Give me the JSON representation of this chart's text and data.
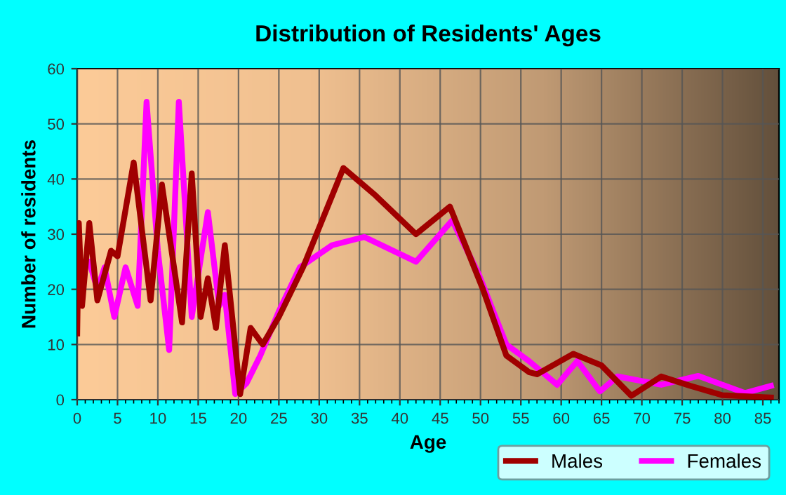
{
  "chart_data": {
    "type": "line",
    "title": "Distribution of Residents' Ages",
    "xlabel": "Age",
    "ylabel": "Number of residents",
    "xlim": [
      0,
      87
    ],
    "xticks": [
      0,
      5,
      10,
      15,
      20,
      25,
      30,
      35,
      40,
      45,
      50,
      55,
      60,
      65,
      70,
      75,
      80,
      85
    ],
    "ylim": [
      0,
      60
    ],
    "yticks": [
      0,
      10,
      20,
      30,
      40,
      50,
      60
    ],
    "grid": true,
    "legend": "bottom right",
    "marker": "none",
    "line_style": "solid",
    "series": [
      {
        "name": "Males",
        "color": "#a00000",
        "x": [
          0,
          0.2,
          0.6,
          1.5,
          2.5,
          4.2,
          5,
          7,
          9.1,
          10.5,
          13,
          14.2,
          15.3,
          16.2,
          17.2,
          18.3,
          20.2,
          21.5,
          23,
          25,
          28,
          33,
          37,
          42,
          46.2,
          50.3,
          53.2,
          56,
          57,
          61.5,
          65,
          68.7,
          72.4,
          76,
          80,
          86
        ],
        "values": [
          12,
          32,
          17,
          32,
          18,
          27,
          26,
          43,
          18,
          39,
          14,
          41,
          15,
          22,
          13,
          28,
          1,
          13,
          10,
          15,
          24,
          42,
          37,
          30,
          35,
          20,
          8,
          5,
          4.6,
          8.3,
          6.2,
          0.7,
          4.2,
          2.5,
          0.8,
          0.4
        ]
      },
      {
        "name": "Females",
        "color": "#ff00ff",
        "x": [
          1.5,
          2.5,
          3.4,
          4.6,
          6,
          7.5,
          8.6,
          10,
          11.4,
          12.6,
          14.2,
          16.2,
          17.6,
          18.3,
          19.6,
          21,
          22.7,
          25,
          27.6,
          31.6,
          35.6,
          42,
          46.5,
          49.7,
          53.2,
          56,
          59.5,
          62,
          64.8,
          67,
          72.4,
          77,
          82.8,
          86
        ],
        "values": [
          25,
          20,
          24,
          15,
          24,
          17,
          54,
          27,
          9,
          54,
          15,
          34,
          17,
          19,
          1,
          3,
          8,
          16,
          24,
          28,
          29.5,
          25,
          32.5,
          23,
          10,
          7,
          2.7,
          7,
          1.5,
          4.2,
          2.7,
          4.3,
          1.2,
          2.5
        ]
      }
    ]
  }
}
